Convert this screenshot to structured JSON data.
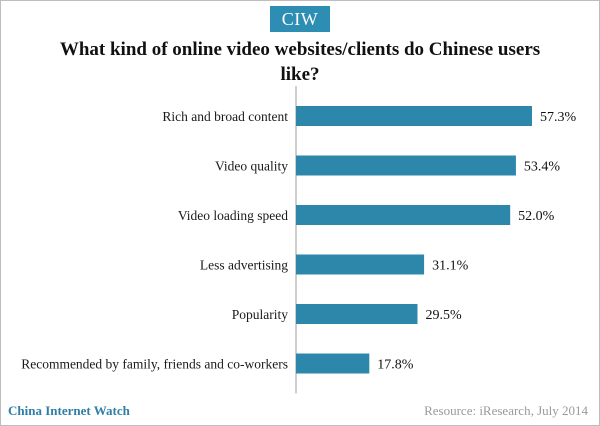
{
  "logo": "CIW",
  "title": "What kind of online video websites/clients do Chinese users like?",
  "footer": {
    "brand": "China Internet Watch",
    "source": "Resource: iResearch, July 2014"
  },
  "colors": {
    "bar": "#2d87ab",
    "brand": "#2e8db2"
  },
  "chart_data": {
    "type": "bar",
    "orientation": "horizontal",
    "title": "What kind of online video websites/clients do Chinese users like?",
    "categories": [
      "Rich and broad content",
      "Video quality",
      "Video loading speed",
      "Less advertising",
      "Popularity",
      "Recommended by family, friends and co-workers"
    ],
    "values": [
      57.3,
      53.4,
      52.0,
      31.1,
      29.5,
      17.8
    ],
    "labels": [
      "57.3%",
      "53.4%",
      "52.0%",
      "31.1%",
      "29.5%",
      "17.8%"
    ],
    "xlim": [
      0,
      57.3
    ],
    "unit": "%",
    "grid": false,
    "legend": "none"
  }
}
